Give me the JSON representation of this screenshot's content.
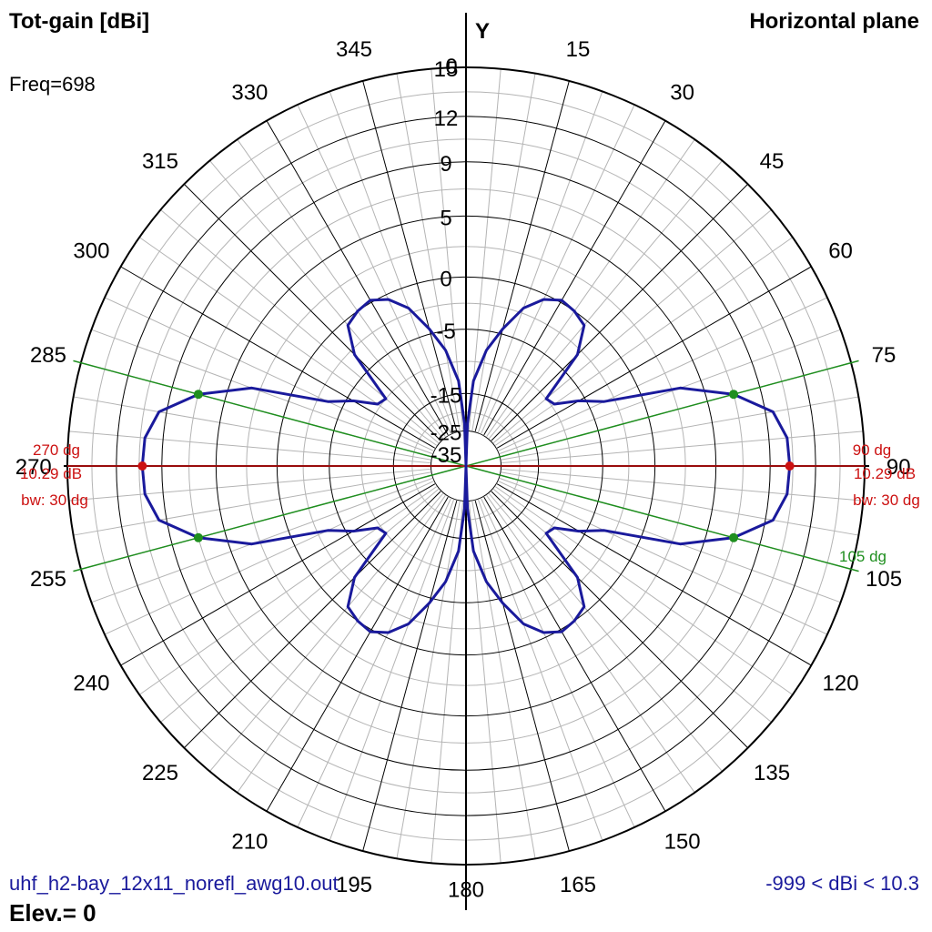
{
  "header": {
    "title": "Tot-gain [dBi]",
    "plane": "Horizontal plane",
    "freq": "Freq=698",
    "axis_name": "Y"
  },
  "footer": {
    "filename": "uhf_h2-bay_12x11_norefl_awg10.out",
    "elevation": "Elev.= 0",
    "range": "-999 < dBi < 10.3"
  },
  "colors": {
    "pattern": "#1a1a9c",
    "max_marker": "#cc1111",
    "beamwidth": "#1f8f1f",
    "grid": "#000000",
    "fine_grid": "#b4b4b4"
  },
  "chart_data": {
    "type": "polar-line",
    "unit": "dBi",
    "angle_ticks": [
      0,
      15,
      30,
      45,
      60,
      75,
      90,
      105,
      120,
      135,
      150,
      165,
      180,
      195,
      210,
      225,
      240,
      255,
      270,
      285,
      300,
      315,
      330,
      345
    ],
    "radial_ticks": [
      "15",
      "12",
      "9",
      "5",
      "0",
      "-5",
      "-15",
      "-25",
      "-35"
    ],
    "radial_values": [
      15,
      12,
      9,
      5,
      0,
      -5,
      -15,
      -25,
      -35
    ],
    "radial_unit_positions": [
      1.0,
      0.877,
      0.763,
      0.627,
      0.474,
      0.343,
      0.182,
      0.088,
      0.0
    ],
    "fine_angle_step": 5,
    "series": [
      {
        "angles": [
          0,
          2,
          5,
          10,
          15,
          20,
          25,
          30,
          35,
          40,
          45,
          50,
          55,
          60,
          65,
          70,
          75,
          80,
          85,
          90,
          95,
          100,
          105,
          110,
          115,
          120,
          125,
          130,
          135,
          140,
          145,
          150,
          155,
          160,
          165,
          170,
          175,
          178,
          180
        ],
        "gain_dbi": [
          -35,
          -23,
          -13,
          -8,
          -4.5,
          -2,
          -0.5,
          0.2,
          0,
          -0.5,
          -3,
          -10,
          -9.5,
          -6,
          -3.5,
          3.2,
          7,
          9.5,
          10.2,
          10.29,
          10.2,
          9.5,
          7,
          3.2,
          -3.5,
          -6,
          -9.5,
          -10,
          -3,
          -0.5,
          0,
          0.2,
          -0.5,
          -2,
          -4.5,
          -8,
          -13,
          -23,
          -35
        ]
      }
    ],
    "markers": {
      "max": [
        {
          "angle_label": "270 dg",
          "gain_label": "10.29 dB",
          "bw_label": "bw: 30 dg",
          "angle": 270,
          "gain_dbi": 10.29
        },
        {
          "angle_label": "90 dg",
          "gain_label": "10.29 dB",
          "bw_label": "bw: 30 dg",
          "angle": 90,
          "gain_dbi": 10.29
        }
      ],
      "beamwidth_angles": [
        75,
        105,
        255,
        285
      ],
      "beamwidth_label": "105 dg"
    }
  }
}
